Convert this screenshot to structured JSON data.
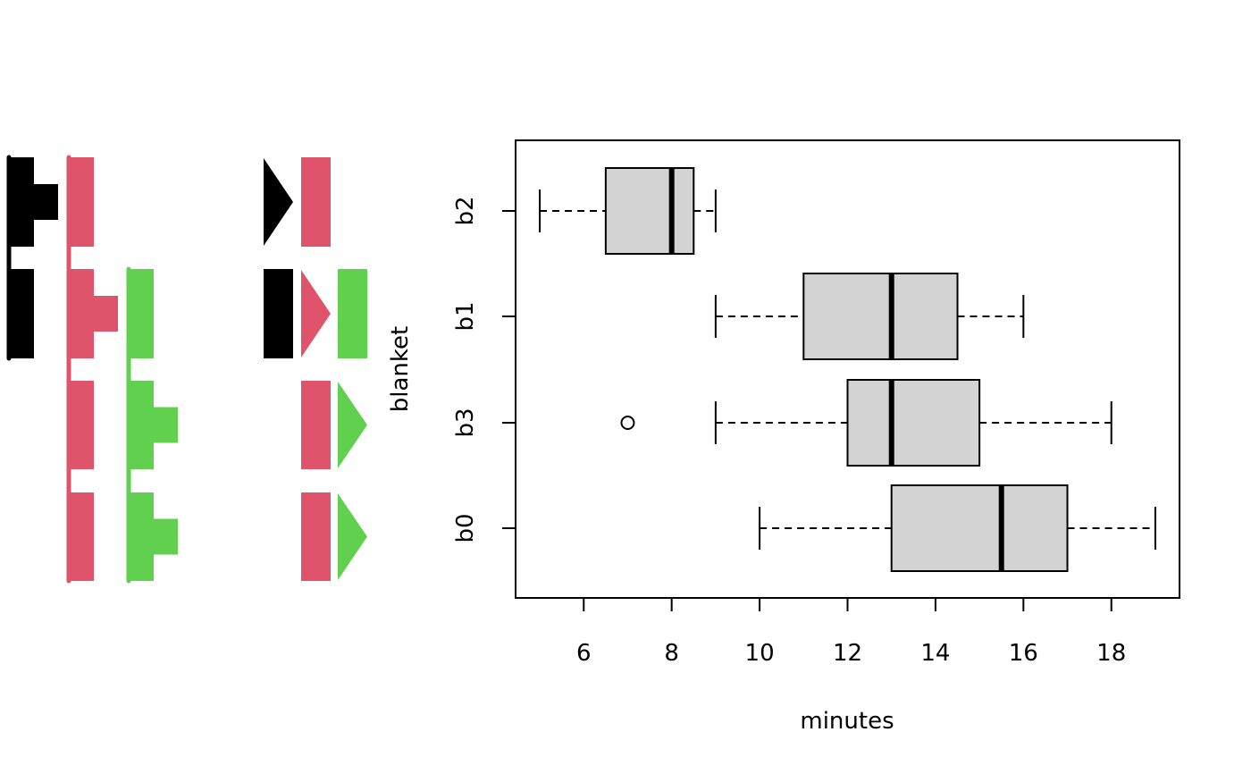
{
  "colors": {
    "group_1": "#000000",
    "group_2": "#df536b",
    "group_3": "#61d04f",
    "box_fill": "#d3d3d3",
    "stroke": "#000000"
  },
  "chart_data": [
    {
      "type": "other",
      "description_of_marks": "upset-style membership panel: one row per boxplot group, histogram-like bars per color set on the left, triangle/rectangle markers on the right",
      "rows": [
        "b2",
        "b1",
        "b3",
        "b0"
      ],
      "membership": [
        {
          "row": "b2",
          "sets": [
            "group_1",
            "group_2"
          ]
        },
        {
          "row": "b1",
          "sets": [
            "group_1",
            "group_2",
            "group_3"
          ]
        },
        {
          "row": "b3",
          "sets": [
            "group_2",
            "group_3"
          ]
        },
        {
          "row": "b0",
          "sets": [
            "group_2",
            "group_3"
          ]
        }
      ],
      "histograms": [
        {
          "set": "group_1",
          "rows": [
            "b2",
            "b1"
          ],
          "peak_row": "b2"
        },
        {
          "set": "group_2",
          "rows": [
            "b2",
            "b1",
            "b3",
            "b0"
          ],
          "peak_row": "b1"
        },
        {
          "set": "group_3",
          "rows": [
            "b1",
            "b3",
            "b0"
          ],
          "peak_rows": [
            "b3",
            "b0"
          ]
        }
      ],
      "markers": [
        {
          "row": "b2",
          "items": [
            {
              "set": "group_1",
              "shape": "triangle"
            },
            {
              "set": "group_2",
              "shape": "rect"
            }
          ]
        },
        {
          "row": "b1",
          "items": [
            {
              "set": "group_1",
              "shape": "rect"
            },
            {
              "set": "group_2",
              "shape": "triangle"
            },
            {
              "set": "group_3",
              "shape": "rect"
            }
          ]
        },
        {
          "row": "b3",
          "items": [
            {
              "set": "group_2",
              "shape": "rect"
            },
            {
              "set": "group_3",
              "shape": "triangle"
            }
          ]
        },
        {
          "row": "b0",
          "items": [
            {
              "set": "group_2",
              "shape": "rect"
            },
            {
              "set": "group_3",
              "shape": "triangle"
            }
          ]
        }
      ]
    },
    {
      "type": "boxplot",
      "orientation": "horizontal",
      "xlabel": "minutes",
      "ylabel": "blanket",
      "xlim": [
        4.45,
        19.55
      ],
      "xticks": [
        6,
        8,
        10,
        12,
        14,
        16,
        18
      ],
      "categories": [
        "b2",
        "b1",
        "b3",
        "b0"
      ],
      "boxes": [
        {
          "category": "b2",
          "whisker_low": 5,
          "q1": 6.5,
          "median": 8,
          "q3": 8.5,
          "whisker_high": 9,
          "outliers": []
        },
        {
          "category": "b1",
          "whisker_low": 9,
          "q1": 11,
          "median": 13,
          "q3": 14.5,
          "whisker_high": 16,
          "outliers": []
        },
        {
          "category": "b3",
          "whisker_low": 9,
          "q1": 12,
          "median": 13,
          "q3": 15,
          "whisker_high": 18,
          "outliers": [
            7
          ]
        },
        {
          "category": "b0",
          "whisker_low": 10,
          "q1": 13,
          "median": 15.5,
          "q3": 17,
          "whisker_high": 19,
          "outliers": []
        }
      ],
      "grid": false,
      "legend": "none"
    }
  ]
}
